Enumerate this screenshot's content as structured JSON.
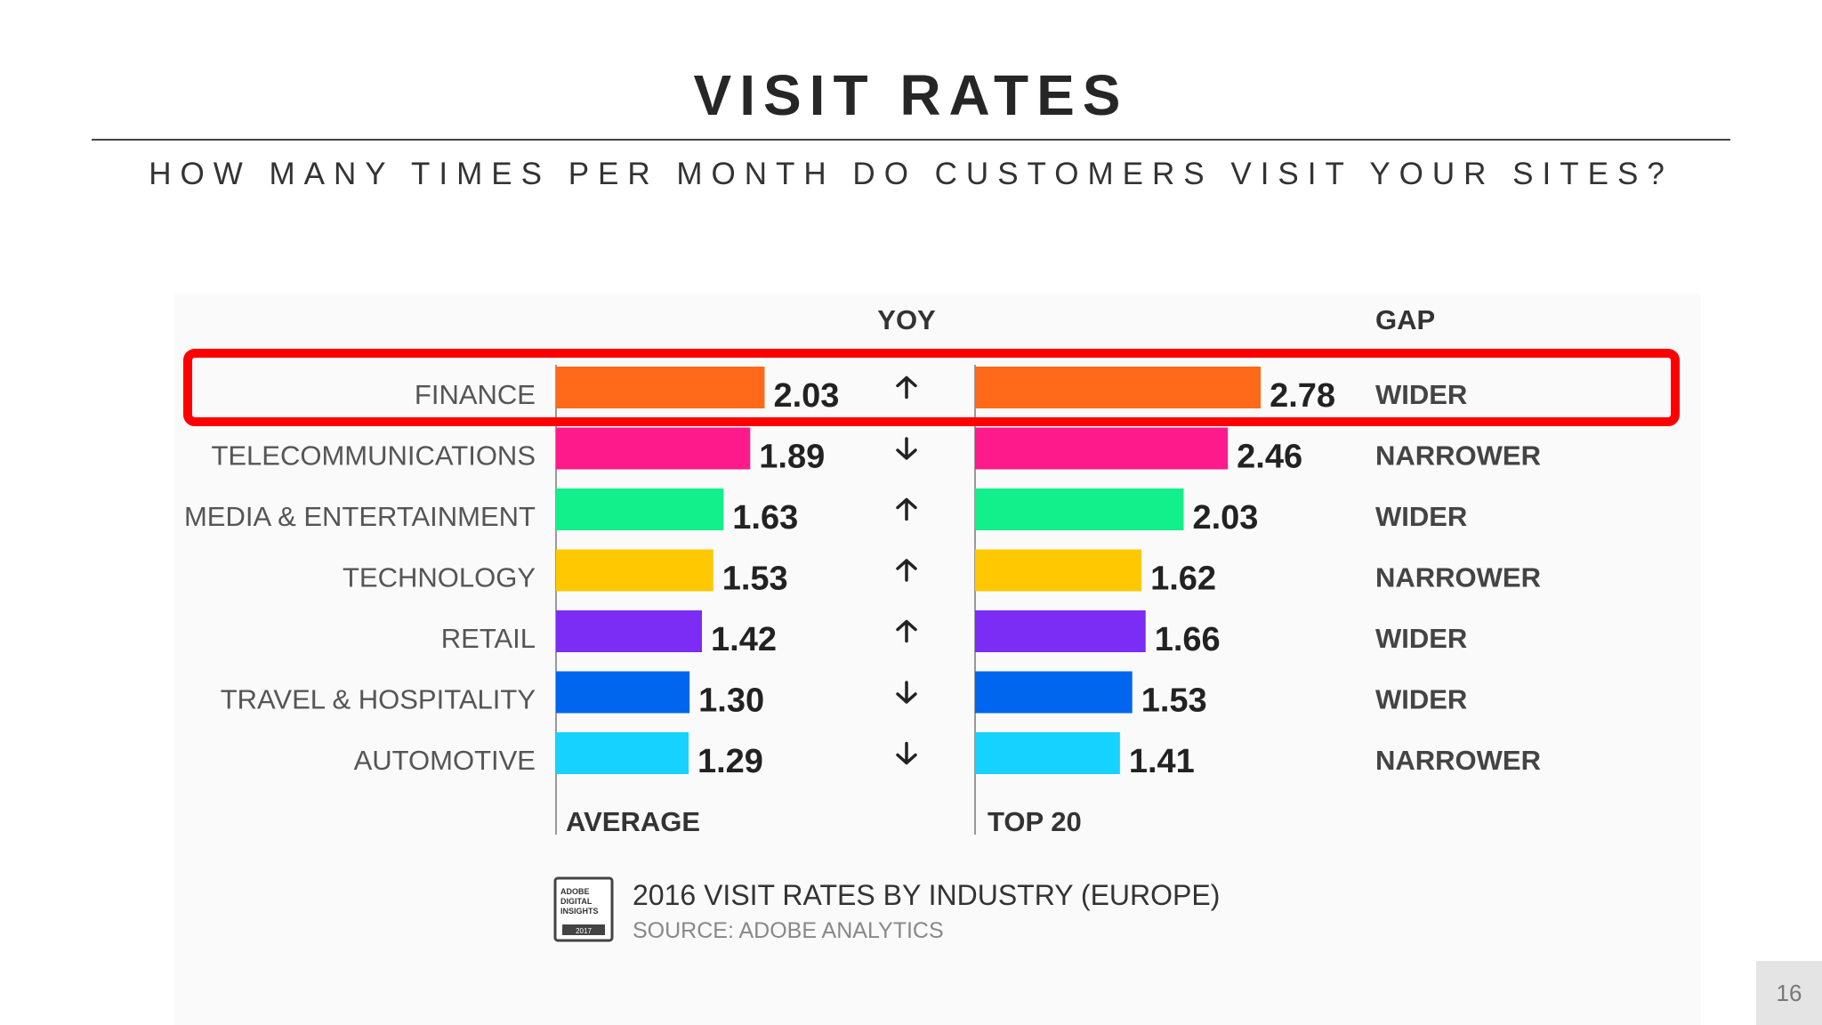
{
  "slide": {
    "title": "VISIT RATES",
    "subtitle": "HOW MANY TIMES PER MONTH DO CUSTOMERS VISIT YOUR SITES?",
    "page_number": "16"
  },
  "highlight": {
    "category": "FINANCE",
    "color": "#ff0000"
  },
  "source_badge": {
    "lines": [
      "ADOBE",
      "DIGITAL",
      "INSIGHTS"
    ],
    "year": "2017"
  },
  "chart_data": {
    "type": "bar",
    "title": "2016 VISIT RATES BY INDUSTRY (EUROPE)",
    "source": "SOURCE: ADOBE ANALYTICS",
    "column_headers": {
      "yoy": "YOY",
      "gap": "GAP"
    },
    "axis_labels": {
      "left": "AVERAGE",
      "right": "TOP 20"
    },
    "categories": [
      "FINANCE",
      "TELECOMMUNICATIONS",
      "MEDIA & ENTERTAINMENT",
      "TECHNOLOGY",
      "RETAIL",
      "TRAVEL & HOSPITALITY",
      "AUTOMOTIVE"
    ],
    "colors": [
      "#ff6a1a",
      "#ff1a8c",
      "#11f08a",
      "#ffc800",
      "#7b2cf5",
      "#0066ee",
      "#16d2ff"
    ],
    "series": [
      {
        "name": "AVERAGE",
        "values": [
          2.03,
          1.89,
          1.63,
          1.53,
          1.42,
          1.3,
          1.29
        ]
      },
      {
        "name": "TOP 20",
        "values": [
          2.78,
          2.46,
          2.03,
          1.62,
          1.66,
          1.53,
          1.41
        ]
      }
    ],
    "yoy": [
      "up",
      "down",
      "up",
      "up",
      "up",
      "down",
      "down"
    ],
    "gap": [
      "WIDER",
      "NARROWER",
      "WIDER",
      "NARROWER",
      "WIDER",
      "WIDER",
      "NARROWER"
    ]
  }
}
